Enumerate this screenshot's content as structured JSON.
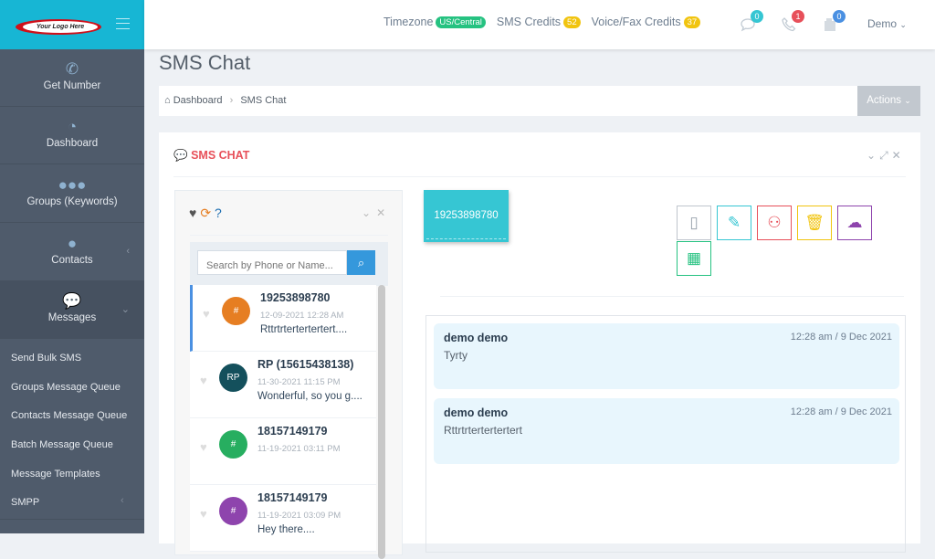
{
  "logo_text": "Your Logo Here",
  "sidebar": {
    "items": [
      {
        "label": "Get Number",
        "icon": "phone-icon"
      },
      {
        "label": "Dashboard",
        "icon": "dashboard-icon"
      },
      {
        "label": "Groups (Keywords)",
        "icon": "users-icon"
      },
      {
        "label": "Contacts",
        "icon": "user-icon"
      },
      {
        "label": "Messages",
        "icon": "chat-icon"
      }
    ],
    "sub_items": [
      "Send Bulk SMS",
      "Groups Message Queue",
      "Contacts Message Queue",
      "Batch Message Queue",
      "Message Templates",
      "SMPP"
    ]
  },
  "header": {
    "timezone_label": "Timezone",
    "timezone": "US/Central",
    "sms_credits_label": "SMS Credits",
    "sms_credits": "52",
    "voice_credits_label": "Voice/Fax Credits",
    "voice_credits": "37",
    "messages_count": "0",
    "calls_count": "1",
    "fax_count": "0",
    "user": "Demo"
  },
  "page": {
    "title": "SMS Chat",
    "breadcrumb": [
      "Dashboard",
      "SMS Chat"
    ],
    "actions": "Actions"
  },
  "portlet": {
    "title": "SMS CHAT"
  },
  "search": {
    "placeholder": "Search by Phone or Name..."
  },
  "conversations": [
    {
      "name": "19253898780",
      "date": "12-09-2021 12:28 AM",
      "preview": "Rttrtrtertertertert....",
      "avatar": "#",
      "color": "#e67e22"
    },
    {
      "name": "RP (15615438138)",
      "date": "11-30-2021 11:15 PM",
      "preview": "Wonderful, so you g....",
      "avatar": "RP",
      "color": "#14505c"
    },
    {
      "name": "18157149179",
      "date": "11-19-2021 03:11 PM",
      "preview": "",
      "avatar": "#",
      "color": "#27ae60"
    },
    {
      "name": "18157149179",
      "date": "11-19-2021 03:09 PM",
      "preview": "Hey there....",
      "avatar": "#",
      "color": "#8e44ad"
    }
  ],
  "chat": {
    "phone": "19253898780",
    "messages": [
      {
        "sender": "demo demo",
        "time": "12:28 am / 9 Dec 2021",
        "text": "Tyrty"
      },
      {
        "sender": "demo demo",
        "time": "12:28 am / 9 Dec 2021",
        "text": "Rttrtrtertertertert"
      }
    ]
  },
  "colors": {
    "brand": "#17b6d4",
    "accent_red": "#e7505a",
    "primary": "#3598dc"
  }
}
